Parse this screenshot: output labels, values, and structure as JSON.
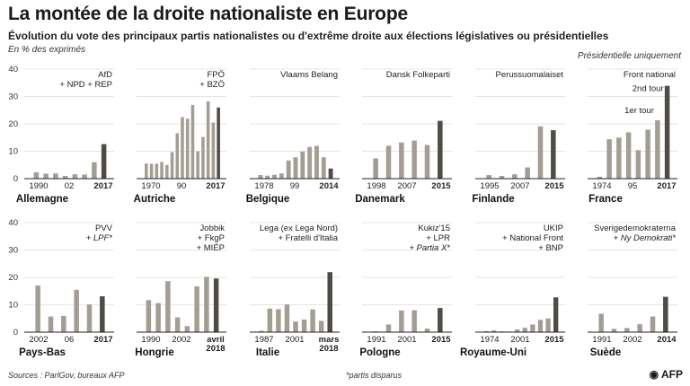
{
  "title": "La montée de la droite nationaliste en Europe",
  "subtitle": "Évolution du vote des principaux partis nationalistes ou d'extrême droite aux élections législatives ou présidentielles",
  "unit_note": "En % des exprimés",
  "top_note": "Présidentielle uniquement",
  "sources": "Sources : ParlGov, bureaux AFP",
  "footnote": "*partis disparus",
  "logo": "AFP",
  "colors": {
    "bar": "#a39e93",
    "bar_highlight": "#4f4b45",
    "axis": "#222222",
    "grid": "#cccccc"
  },
  "chart_data": [
    {
      "type": "bar",
      "country": "Allemagne",
      "party_lines": [
        "AfD",
        "+ NPD + REP"
      ],
      "x_ticks": [
        "1990",
        "02",
        "2017"
      ],
      "ylim": [
        0,
        40
      ],
      "values": [
        2.3,
        1.8,
        1.9,
        1.0,
        1.6,
        1.5,
        6.0,
        12.6
      ],
      "highlight_index": 7
    },
    {
      "type": "bar",
      "country": "Autriche",
      "party_lines": [
        "FPÖ",
        "+ BZÖ"
      ],
      "x_ticks": [
        "1970",
        "90",
        "2017"
      ],
      "ylim": [
        0,
        40
      ],
      "values": [
        5.5,
        5.4,
        5.5,
        6.1,
        5.0,
        9.7,
        16.6,
        22.5,
        21.9,
        26.9,
        10.0,
        15.2,
        28.2,
        20.5,
        26.0
      ],
      "highlight_index": 14
    },
    {
      "type": "bar",
      "country": "Belgique",
      "party_lines": [
        "Vlaams Belang"
      ],
      "x_ticks": [
        "1978",
        "99",
        "2014"
      ],
      "ylim": [
        0,
        40
      ],
      "values": [
        1.3,
        1.1,
        1.4,
        1.9,
        6.6,
        7.8,
        9.9,
        11.6,
        12.0,
        7.8,
        3.7
      ],
      "highlight_index": 10
    },
    {
      "type": "bar",
      "country": "Danemark",
      "party_lines": [
        "Dansk Folkeparti"
      ],
      "x_ticks": [
        "1998",
        "2007",
        "2015"
      ],
      "ylim": [
        0,
        40
      ],
      "values": [
        7.4,
        12.0,
        13.2,
        13.9,
        12.3,
        21.1
      ],
      "highlight_index": 5
    },
    {
      "type": "bar",
      "country": "Finlande",
      "party_lines": [
        "Perussuomalaiset"
      ],
      "x_ticks": [
        "1995",
        "2007",
        "2015"
      ],
      "ylim": [
        0,
        40
      ],
      "values": [
        1.3,
        1.0,
        1.6,
        4.1,
        19.1,
        17.7
      ],
      "highlight_index": 5
    },
    {
      "type": "bar",
      "country": "France",
      "party_lines": [
        "Front national"
      ],
      "x_ticks": [
        "1974",
        "95",
        "2017"
      ],
      "ylim": [
        0,
        40
      ],
      "values": [
        0.7,
        14.4,
        15.0,
        16.9,
        10.4,
        17.9,
        21.3,
        33.9
      ],
      "highlight_index": 7,
      "annotations": [
        {
          "text": "2nd tour",
          "bar": 7
        },
        {
          "text": "1er tour",
          "bar": 6
        }
      ]
    },
    {
      "type": "bar",
      "country": "Pays-Bas",
      "party_lines": [
        "PVV",
        "+ LPF*"
      ],
      "x_ticks": [
        "2002",
        "06",
        "2017"
      ],
      "ylim": [
        0,
        40
      ],
      "values": [
        17.0,
        5.7,
        5.9,
        15.5,
        10.1,
        13.1
      ],
      "highlight_index": 5
    },
    {
      "type": "bar",
      "country": "Hongrie",
      "party_lines": [
        "Jobbik",
        "+ FkgP",
        "+ MIÉP"
      ],
      "x_ticks": [
        "1990",
        "2002",
        "avril 2018"
      ],
      "ylim": [
        0,
        40
      ],
      "values": [
        11.7,
        10.6,
        18.6,
        5.4,
        2.2,
        16.7,
        20.2,
        19.6
      ],
      "highlight_index": 7
    },
    {
      "type": "bar",
      "country": "Italie",
      "party_lines": [
        "Lega (ex Lega Nord)",
        "+ Fratelli d'Italia"
      ],
      "x_ticks": [
        "1987",
        "2001",
        "mars 2018"
      ],
      "ylim": [
        0,
        40
      ],
      "values": [
        0.5,
        8.6,
        8.4,
        10.1,
        3.9,
        4.6,
        8.3,
        4.1,
        21.9
      ],
      "highlight_index": 8
    },
    {
      "type": "bar",
      "country": "Pologne",
      "party_lines": [
        "Kukiz'15",
        "+ LPR",
        "+ Partia X*"
      ],
      "x_ticks": [
        "1991",
        "2001",
        "2015"
      ],
      "ylim": [
        0,
        40
      ],
      "values": [
        0.3,
        2.8,
        7.9,
        8.0,
        1.3,
        8.8
      ],
      "highlight_index": 5
    },
    {
      "type": "bar",
      "country": "Royaume-Uni",
      "party_lines": [
        "UKIP",
        "+ National Front",
        "+ BNP"
      ],
      "x_ticks": [
        "1974",
        "2001",
        "2015"
      ],
      "ylim": [
        0,
        40
      ],
      "values": [
        0.4,
        0.6,
        0.3,
        0.2,
        1.0,
        1.6,
        2.8,
        4.5,
        5.0,
        12.7
      ],
      "highlight_index": 9
    },
    {
      "type": "bar",
      "country": "Suède",
      "party_lines": [
        "Sverigedemokraterna",
        "+ Ny Demokrati*"
      ],
      "x_ticks": [
        "1991",
        "2002",
        "2014"
      ],
      "ylim": [
        0,
        40
      ],
      "values": [
        6.7,
        1.2,
        1.5,
        2.9,
        5.7,
        12.9
      ],
      "highlight_index": 5
    }
  ]
}
